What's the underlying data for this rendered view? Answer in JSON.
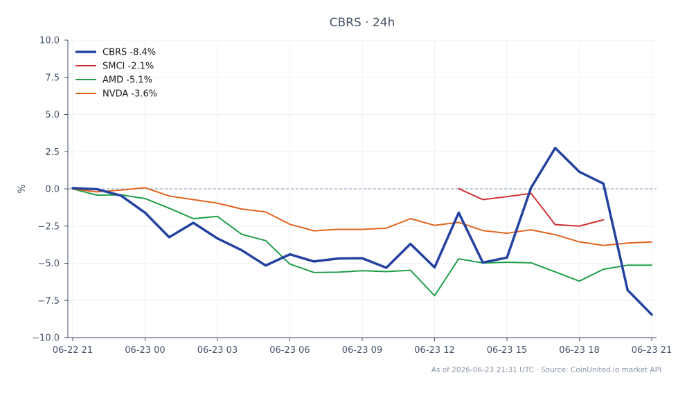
{
  "chart_data": {
    "type": "line",
    "title": "CBRS · 24h",
    "xlabel": "",
    "ylabel": "%",
    "ylim": [
      -10,
      10
    ],
    "yticks": [
      10.0,
      7.5,
      5.0,
      2.5,
      0.0,
      -2.5,
      -5.0,
      -7.5,
      -10.0
    ],
    "ytick_labels": [
      "10.0",
      "7.5",
      "5.0",
      "2.5",
      "0.0",
      "−2.5",
      "−5.0",
      "−7.5",
      "−10.0"
    ],
    "xlim": [
      -0.2,
      24.2
    ],
    "xticks": [
      0,
      3,
      6,
      9,
      12,
      15,
      18,
      21,
      24
    ],
    "xtick_labels": [
      "06-22 21",
      "06-23 00",
      "06-23 03",
      "06-23 06",
      "06-23 09",
      "06-23 12",
      "06-23 15",
      "06-23 18",
      "06-23 21"
    ],
    "grid": true,
    "zero_line": true,
    "legend_position": "top-left",
    "series": [
      {
        "name": "CBRS -8.4%",
        "color": "#2342a0",
        "emphasis": true,
        "x": [
          0,
          1,
          2,
          3,
          4,
          5,
          6,
          7,
          8,
          9,
          10,
          11,
          12,
          13,
          14,
          15,
          16,
          17,
          18,
          19,
          20,
          21,
          22,
          23,
          24
        ],
        "y": [
          0.05,
          -0.02,
          -0.45,
          -1.6,
          -3.25,
          -2.28,
          -3.33,
          -4.12,
          -5.15,
          -4.4,
          -4.88,
          -4.68,
          -4.66,
          -5.3,
          -3.7,
          -5.28,
          -1.6,
          -4.95,
          -4.62,
          0.08,
          2.75,
          1.15,
          0.35,
          -6.8,
          -8.45
        ]
      },
      {
        "name": "SMCI -2.1%",
        "color": "#d03030",
        "emphasis": false,
        "x": [
          16,
          17,
          18,
          19,
          20,
          21,
          22
        ],
        "y": [
          0.02,
          -0.72,
          -0.52,
          -0.3,
          -2.4,
          -2.5,
          -2.08
        ]
      },
      {
        "name": "AMD -5.1%",
        "color": "#1e9e48",
        "emphasis": false,
        "x": [
          0,
          1,
          2,
          3,
          4,
          5,
          6,
          7,
          8,
          9,
          10,
          11,
          12,
          13,
          14,
          15,
          16,
          17,
          18,
          19,
          20,
          21,
          22,
          23,
          24
        ],
        "y": [
          0.0,
          -0.42,
          -0.4,
          -0.65,
          -1.3,
          -2.0,
          -1.85,
          -3.05,
          -3.48,
          -5.05,
          -5.62,
          -5.6,
          -5.5,
          -5.56,
          -5.47,
          -7.18,
          -4.7,
          -4.98,
          -4.93,
          -4.97,
          -5.58,
          -6.2,
          -5.4,
          -5.13,
          -5.13
        ]
      },
      {
        "name": "NVDA -3.6%",
        "color": "#e2641e",
        "emphasis": false,
        "x": [
          0,
          1,
          2,
          3,
          4,
          5,
          6,
          7,
          8,
          9,
          10,
          11,
          12,
          13,
          14,
          15,
          16,
          17,
          18,
          19,
          20,
          21,
          22,
          23,
          24
        ],
        "y": [
          0.0,
          -0.2,
          -0.08,
          0.08,
          -0.48,
          -0.72,
          -0.96,
          -1.35,
          -1.55,
          -2.38,
          -2.82,
          -2.72,
          -2.72,
          -2.64,
          -2.0,
          -2.45,
          -2.25,
          -2.8,
          -2.98,
          -2.75,
          -3.08,
          -3.56,
          -3.8,
          -3.64,
          -3.57
        ]
      }
    ]
  },
  "footer": {
    "source_text": "As of 2026-06-23 21:31 UTC · Source: CoinUnited.io market API"
  }
}
